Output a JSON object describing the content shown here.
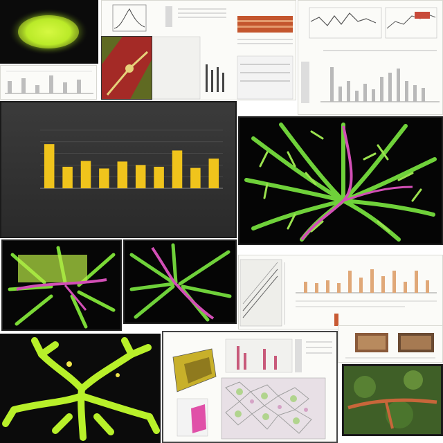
{
  "chart_data": {
    "type": "bar",
    "categories": [
      "",
      "",
      "",
      "",
      "",
      "",
      "",
      "",
      "",
      ""
    ],
    "values": [
      7.6,
      3.7,
      4.7,
      3.4,
      4.6,
      4.0,
      3.7,
      6.5,
      3.5,
      5.1
    ],
    "title": "",
    "xlabel": "",
    "ylabel": "",
    "ylim": [
      0,
      10
    ],
    "grid": true,
    "bar_color": "#f0c41c",
    "background_color": "#2f2f2f"
  },
  "colors": {
    "leaf_green": "#6fd13a",
    "neon_green": "#c6f22a",
    "vein_pink": "#d24fb6",
    "orange_bar": "#e0a878",
    "bar_gray": "#b9b9b9"
  }
}
